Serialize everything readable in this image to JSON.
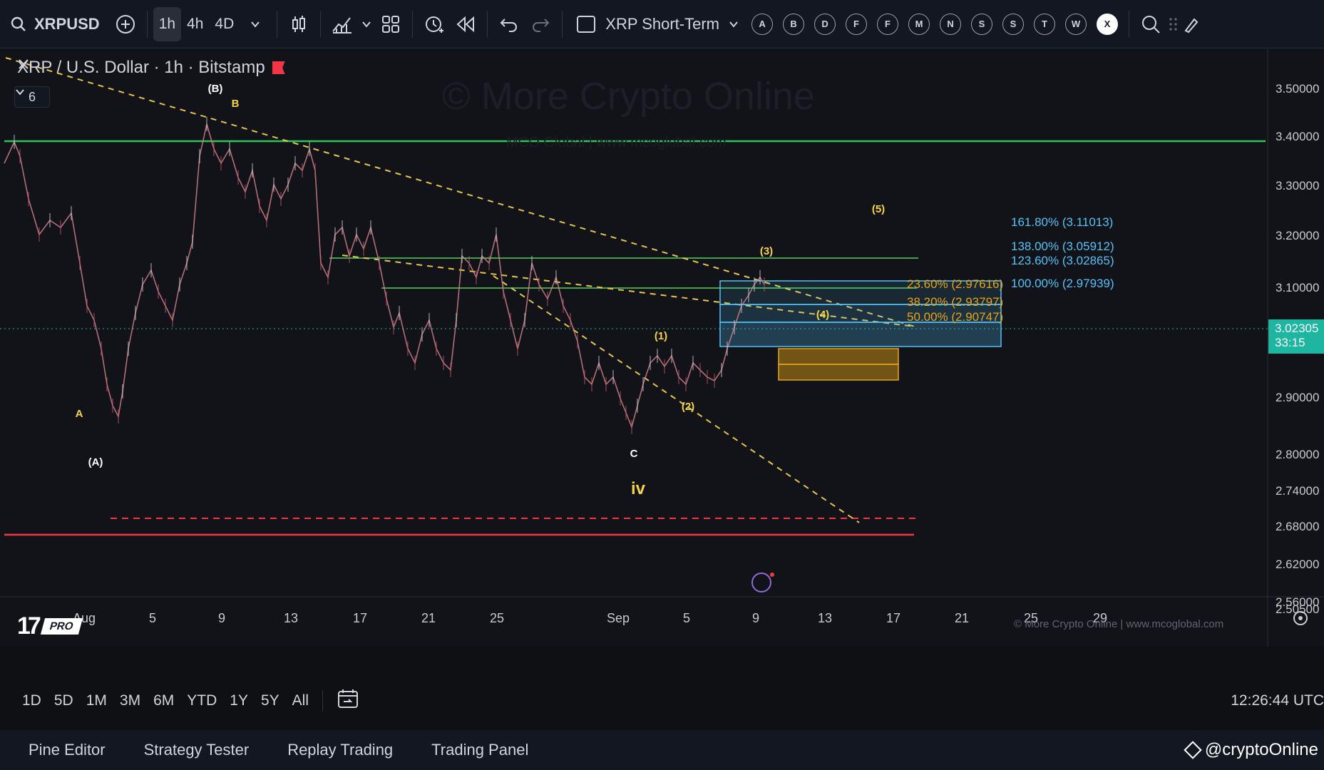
{
  "toolbar": {
    "symbol": "XRPUSD",
    "intervals": [
      "1h",
      "4h",
      "4D"
    ],
    "active_interval": "1h",
    "layout_name": "XRP Short-Term",
    "letter_buttons": [
      "A",
      "B",
      "D",
      "F",
      "F",
      "M",
      "N",
      "S",
      "S",
      "T",
      "W",
      "X"
    ]
  },
  "legend": {
    "title": "XRP / U.S. Dollar · 1h · Bitstamp",
    "collapse_count": "6"
  },
  "watermark": {
    "main": "© More Crypto Online",
    "sub": "MCO Global  |  www.mcoglobal.com",
    "bottom": "© More Crypto Online  |  www.mcoglobal.com"
  },
  "price_axis": {
    "labels": [
      "3.50000",
      "3.40000",
      "3.30000",
      "3.20000",
      "3.10000",
      "2.90000",
      "2.80000",
      "2.74000",
      "2.68000",
      "2.62000",
      "2.56000",
      "2.50500"
    ],
    "current_price": "3.02305",
    "countdown": "33:15"
  },
  "time_axis": {
    "labels": [
      "Aug",
      "5",
      "9",
      "13",
      "17",
      "21",
      "25",
      "Sep",
      "5",
      "9",
      "13",
      "17",
      "21",
      "25",
      "29"
    ]
  },
  "annotations": {
    "waves": [
      "(B)",
      "B",
      "A",
      "(A)",
      "C",
      "iv",
      "(1)",
      "(2)",
      "(3)",
      "(4)",
      "(5)"
    ]
  },
  "fibonacci": {
    "extensions": [
      "161.80% (3.11013)",
      "138.00% (3.05912)",
      "123.60% (3.02865)",
      "100.00% (2.97939)"
    ],
    "retracements": [
      "23.60% (2.97616)",
      "38.20% (2.93797)",
      "50.00% (2.90747)"
    ]
  },
  "colors": {
    "green_line": "#2fc45a",
    "red_line": "#f23645",
    "fib_cyan": "#4fc3f7",
    "fib_orange": "#e8a317",
    "wave_label": "#f5d442",
    "price_tag": "#1eb6a1"
  },
  "range_bar": {
    "buttons": [
      "1D",
      "5D",
      "1M",
      "3M",
      "6M",
      "YTD",
      "1Y",
      "5Y",
      "All"
    ],
    "clock": "12:26:44 UTC"
  },
  "panel_tabs": [
    "Pine Editor",
    "Strategy Tester",
    "Replay Trading",
    "Trading Panel"
  ],
  "credit": "@cryptoOnline"
}
